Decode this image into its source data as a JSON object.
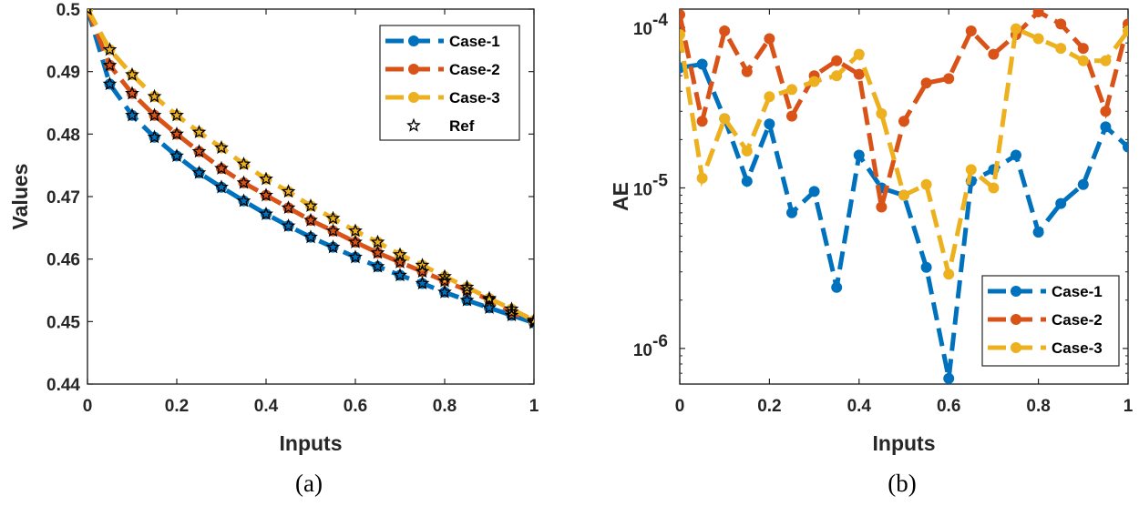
{
  "colors": {
    "case1": "#0072BD",
    "case2": "#D95319",
    "case3": "#EDB120",
    "ref": "#000000"
  },
  "chart_data": [
    {
      "type": "line",
      "caption": "(a)",
      "xlabel": "Inputs",
      "ylabel": "Values",
      "xlim": [
        0,
        1
      ],
      "ylim": [
        0.44,
        0.5
      ],
      "xticks": [
        0,
        0.2,
        0.4,
        0.6,
        0.8,
        1
      ],
      "xtick_labels": [
        "0",
        "0.2",
        "0.4",
        "0.6",
        "0.8",
        "1"
      ],
      "yticks": [
        0.44,
        0.45,
        0.46,
        0.47,
        0.48,
        0.49,
        0.5
      ],
      "ytick_labels": [
        "0.44",
        "0.45",
        "0.46",
        "0.47",
        "0.48",
        "0.49",
        "0.5"
      ],
      "grid": false,
      "legend_position": "top-right",
      "x": [
        0,
        0.05,
        0.1,
        0.15,
        0.2,
        0.25,
        0.3,
        0.35,
        0.4,
        0.45,
        0.5,
        0.55,
        0.6,
        0.65,
        0.7,
        0.75,
        0.8,
        0.85,
        0.9,
        0.95,
        1
      ],
      "series": [
        {
          "name": "Case-1",
          "color_key": "case1",
          "marker": "circle",
          "values": [
            0.5,
            0.488,
            0.483,
            0.4795,
            0.4765,
            0.4738,
            0.4715,
            0.4693,
            0.4672,
            0.4653,
            0.4635,
            0.4619,
            0.4603,
            0.4588,
            0.4574,
            0.4561,
            0.4547,
            0.4534,
            0.4522,
            0.451,
            0.4498
          ]
        },
        {
          "name": "Case-2",
          "color_key": "case2",
          "marker": "circle",
          "values": [
            0.5,
            0.491,
            0.4865,
            0.483,
            0.48,
            0.4772,
            0.4745,
            0.4722,
            0.4702,
            0.4682,
            0.4662,
            0.4645,
            0.4627,
            0.461,
            0.4595,
            0.458,
            0.4565,
            0.455,
            0.4535,
            0.4515,
            0.45
          ]
        },
        {
          "name": "Case-3",
          "color_key": "case3",
          "marker": "circle",
          "values": [
            0.5,
            0.4935,
            0.4895,
            0.486,
            0.483,
            0.4803,
            0.4778,
            0.4752,
            0.4728,
            0.4708,
            0.4685,
            0.4665,
            0.4645,
            0.4627,
            0.4607,
            0.459,
            0.4572,
            0.4555,
            0.4537,
            0.452,
            0.4502
          ]
        },
        {
          "name": "Ref",
          "color_key": "ref",
          "marker": "star",
          "values": "same points as Case-1, Case-2 and Case-3"
        }
      ]
    },
    {
      "type": "line",
      "caption": "(b)",
      "xlabel": "Inputs",
      "ylabel": "AE",
      "yscale": "log",
      "xlim": [
        0,
        1
      ],
      "ylim": [
        6e-07,
        0.00013
      ],
      "xticks": [
        0,
        0.2,
        0.4,
        0.6,
        0.8,
        1
      ],
      "xtick_labels": [
        "0",
        "0.2",
        "0.4",
        "0.6",
        "0.8",
        "1"
      ],
      "yticks": [
        1e-06,
        1e-05,
        0.0001
      ],
      "ytick_labels": [
        {
          "base": "10",
          "exp": "-6"
        },
        {
          "base": "10",
          "exp": "-5"
        },
        {
          "base": "10",
          "exp": "-4"
        }
      ],
      "grid": false,
      "legend_position": "bottom-right",
      "x": [
        0,
        0.05,
        0.1,
        0.15,
        0.2,
        0.25,
        0.3,
        0.35,
        0.4,
        0.45,
        0.5,
        0.55,
        0.6,
        0.65,
        0.7,
        0.75,
        0.8,
        0.85,
        0.9,
        0.95,
        1
      ],
      "series": [
        {
          "name": "Case-1",
          "color_key": "case1",
          "marker": "circle",
          "values": [
            5.6e-05,
            5.9e-05,
            2.7e-05,
            1.1e-05,
            2.5e-05,
            7e-06,
            9.5e-06,
            2.4e-06,
            1.6e-05,
            1e-05,
            9e-06,
            3.2e-06,
            6.5e-07,
            1.1e-05,
            1.3e-05,
            1.6e-05,
            5.3e-06,
            8e-06,
            1.05e-05,
            2.4e-05,
            1.8e-05
          ]
        },
        {
          "name": "Case-2",
          "color_key": "case2",
          "marker": "circle",
          "values": [
            0.00012,
            2.6e-05,
            9.5e-05,
            5.3e-05,
            8.5e-05,
            2.8e-05,
            5e-05,
            6.2e-05,
            5.1e-05,
            7.6e-06,
            2.6e-05,
            4.5e-05,
            4.8e-05,
            9.5e-05,
            6.8e-05,
            9e-05,
            0.000125,
            0.000105,
            7.4e-05,
            3e-05,
            0.000105
          ]
        },
        {
          "name": "Case-3",
          "color_key": "case3",
          "marker": "circle",
          "values": [
            9e-05,
            1.15e-05,
            2.7e-05,
            1.7e-05,
            3.7e-05,
            4.1e-05,
            4.6e-05,
            5e-05,
            6.8e-05,
            2.9e-05,
            9e-06,
            1.05e-05,
            2.9e-06,
            1.3e-05,
            1e-05,
            9.8e-05,
            8.5e-05,
            7.4e-05,
            6.2e-05,
            6.2e-05,
            9.5e-05
          ]
        }
      ]
    }
  ]
}
